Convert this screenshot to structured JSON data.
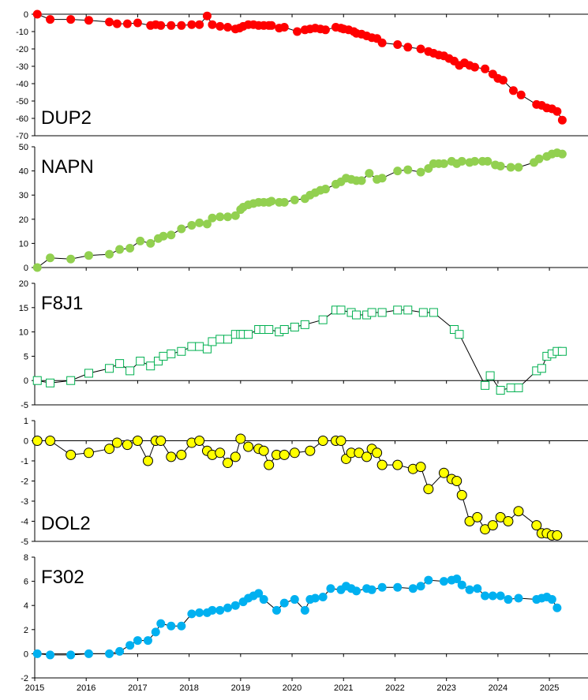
{
  "chart_data": [
    {
      "type": "line",
      "title": "DUP2",
      "ylim": [
        -70,
        0
      ],
      "yticks": [
        -70,
        -60,
        -50,
        -40,
        -30,
        -20,
        -10,
        0
      ],
      "title_pos": "bottom-left",
      "marker": "circle",
      "color": "#ff0000",
      "series": [
        {
          "name": "",
          "x": [
            2015.05,
            2015.3,
            2015.7,
            2016.05,
            2016.45,
            2016.6,
            2016.8,
            2017.0,
            2017.25,
            2017.35,
            2017.45,
            2017.65,
            2017.85,
            2018.05,
            2018.2,
            2018.35,
            2018.45,
            2018.6,
            2018.75,
            2018.9,
            2018.98,
            2019.05,
            2019.15,
            2019.25,
            2019.35,
            2019.45,
            2019.55,
            2019.6,
            2019.75,
            2019.85,
            2020.1,
            2020.25,
            2020.35,
            2020.45,
            2020.55,
            2020.65,
            2020.85,
            2020.95,
            2021.0,
            2021.1,
            2021.2,
            2021.25,
            2021.35,
            2021.45,
            2021.55,
            2021.65,
            2021.75,
            2022.05,
            2022.25,
            2022.5,
            2022.65,
            2022.75,
            2022.85,
            2022.95,
            2023.05,
            2023.15,
            2023.25,
            2023.35,
            2023.45,
            2023.55,
            2023.75,
            2023.9,
            2024.0,
            2024.1,
            2024.3,
            2024.45,
            2024.75,
            2024.85,
            2024.95,
            2025.05,
            2025.15,
            2025.25
          ],
          "y": [
            0,
            -3,
            -3,
            -3.5,
            -4.5,
            -5.5,
            -5.5,
            -5,
            -6.5,
            -6,
            -6.5,
            -6.5,
            -6.5,
            -6,
            -6,
            -1,
            -6,
            -7,
            -7.5,
            -8.5,
            -8,
            -7,
            -6,
            -6,
            -6.5,
            -6.5,
            -6.5,
            -6.5,
            -8,
            -7.5,
            -10,
            -9,
            -8.5,
            -8,
            -8.5,
            -9,
            -7.5,
            -8,
            -8.5,
            -9,
            -10,
            -11,
            -11.5,
            -12.5,
            -13.5,
            -14,
            -16.5,
            -17.5,
            -19,
            -20,
            -21.5,
            -22.5,
            -23.5,
            -24,
            -25.5,
            -27,
            -29.5,
            -28,
            -29.5,
            -30.5,
            -31.5,
            -34.5,
            -37,
            -38,
            -44,
            -46.5,
            -52,
            -52.5,
            -54,
            -54.5,
            -56,
            -61
          ]
        }
      ]
    },
    {
      "type": "line",
      "title": "NAPN",
      "ylim": [
        0,
        50
      ],
      "yticks": [
        0,
        10,
        20,
        30,
        40,
        50
      ],
      "title_pos": "top-left",
      "marker": "circle",
      "color": "#92d050",
      "series": [
        {
          "name": "",
          "x": [
            2015.05,
            2015.3,
            2015.7,
            2016.05,
            2016.45,
            2016.65,
            2016.85,
            2017.05,
            2017.25,
            2017.4,
            2017.5,
            2017.65,
            2017.85,
            2018.05,
            2018.2,
            2018.35,
            2018.45,
            2018.6,
            2018.75,
            2018.9,
            2019.0,
            2019.05,
            2019.15,
            2019.25,
            2019.35,
            2019.45,
            2019.55,
            2019.6,
            2019.75,
            2019.85,
            2020.05,
            2020.25,
            2020.35,
            2020.45,
            2020.55,
            2020.65,
            2020.85,
            2020.95,
            2021.05,
            2021.15,
            2021.25,
            2021.35,
            2021.5,
            2021.65,
            2021.75,
            2022.05,
            2022.25,
            2022.5,
            2022.65,
            2022.75,
            2022.85,
            2022.95,
            2023.1,
            2023.2,
            2023.3,
            2023.45,
            2023.55,
            2023.7,
            2023.8,
            2023.95,
            2024.05,
            2024.25,
            2024.4,
            2024.7,
            2024.8,
            2024.95,
            2025.05,
            2025.15,
            2025.25
          ],
          "y": [
            0,
            4,
            3.5,
            5,
            5.5,
            7.5,
            8,
            11,
            10,
            12,
            13,
            13.5,
            16,
            17.5,
            18.5,
            18,
            20.5,
            21,
            21,
            21.5,
            24,
            25,
            26,
            26.5,
            27,
            27,
            27,
            27.5,
            27,
            27,
            28,
            28.5,
            30,
            31,
            32,
            32.5,
            34.5,
            35.5,
            37,
            36.5,
            36,
            36,
            39,
            36.5,
            37,
            40,
            40.5,
            39.5,
            41,
            43,
            43,
            43,
            44,
            43,
            44,
            43.5,
            44,
            44,
            44,
            42.5,
            42,
            41.5,
            41.5,
            43.5,
            45,
            46,
            47,
            47.5,
            47
          ]
        }
      ]
    },
    {
      "type": "line",
      "title": "F8J1",
      "ylim": [
        -5,
        20
      ],
      "yticks": [
        -5,
        0,
        5,
        10,
        15,
        20
      ],
      "title_pos": "top-left",
      "marker": "square",
      "color": "#00b050",
      "series": [
        {
          "name": "",
          "x": [
            2015.05,
            2015.3,
            2015.7,
            2016.05,
            2016.45,
            2016.65,
            2016.85,
            2017.05,
            2017.25,
            2017.4,
            2017.5,
            2017.65,
            2017.85,
            2018.05,
            2018.2,
            2018.35,
            2018.45,
            2018.6,
            2018.75,
            2018.9,
            2019.0,
            2019.05,
            2019.15,
            2019.35,
            2019.45,
            2019.55,
            2019.75,
            2019.85,
            2020.05,
            2020.25,
            2020.6,
            2020.85,
            2020.95,
            2021.15,
            2021.25,
            2021.45,
            2021.55,
            2021.75,
            2022.05,
            2022.25,
            2022.55,
            2022.75,
            2023.15,
            2023.25,
            2023.75,
            2023.85,
            2024.05,
            2024.25,
            2024.4,
            2024.75,
            2024.85,
            2024.95,
            2025.05,
            2025.15,
            2025.25
          ],
          "y": [
            0,
            -0.5,
            0,
            1.5,
            2.5,
            3.5,
            2,
            4,
            3,
            4,
            5,
            5.5,
            6,
            7,
            7,
            6.5,
            8,
            8.5,
            8.5,
            9.5,
            9.5,
            9.5,
            9.5,
            10.5,
            10.5,
            10.5,
            10,
            10.5,
            11,
            11.5,
            12.5,
            14.5,
            14.5,
            14,
            13.5,
            13.5,
            14,
            14,
            14.5,
            14.5,
            14,
            14,
            10.5,
            9.5,
            -1,
            1,
            -2,
            -1.5,
            -1.5,
            2,
            2.5,
            5,
            5.5,
            6,
            6
          ]
        }
      ]
    },
    {
      "type": "line",
      "title": "DOL2",
      "ylim": [
        -5,
        1
      ],
      "yticks": [
        -5,
        -4,
        -3,
        -2,
        -1,
        0,
        1
      ],
      "title_pos": "bottom-left",
      "marker": "circle",
      "color": "#ffff00",
      "series": [
        {
          "name": "",
          "x": [
            2015.05,
            2015.3,
            2015.7,
            2016.05,
            2016.45,
            2016.6,
            2016.8,
            2017.0,
            2017.2,
            2017.35,
            2017.45,
            2017.65,
            2017.85,
            2018.05,
            2018.2,
            2018.35,
            2018.45,
            2018.6,
            2018.75,
            2018.9,
            2019.0,
            2019.15,
            2019.35,
            2019.45,
            2019.55,
            2019.7,
            2019.85,
            2020.05,
            2020.35,
            2020.6,
            2020.85,
            2020.95,
            2021.05,
            2021.15,
            2021.3,
            2021.45,
            2021.55,
            2021.65,
            2021.75,
            2022.05,
            2022.35,
            2022.5,
            2022.65,
            2022.95,
            2023.1,
            2023.2,
            2023.3,
            2023.45,
            2023.6,
            2023.75,
            2023.9,
            2024.05,
            2024.2,
            2024.4,
            2024.75,
            2024.85,
            2024.95,
            2025.05,
            2025.15
          ],
          "y": [
            0,
            0,
            -0.7,
            -0.6,
            -0.4,
            -0.1,
            -0.2,
            0,
            -1,
            0,
            0,
            -0.8,
            -0.7,
            -0.1,
            0,
            -0.5,
            -0.7,
            -0.6,
            -1.1,
            -0.8,
            0.1,
            -0.3,
            -0.4,
            -0.5,
            -1.2,
            -0.7,
            -0.7,
            -0.6,
            -0.5,
            0,
            0,
            0,
            -0.9,
            -0.6,
            -0.6,
            -0.8,
            -0.4,
            -0.6,
            -1.2,
            -1.2,
            -1.4,
            -1.3,
            -2.4,
            -1.6,
            -1.9,
            -2,
            -2.7,
            -4,
            -3.8,
            -4.4,
            -4.2,
            -3.8,
            -4,
            -3.5,
            -4.2,
            -4.6,
            -4.6,
            -4.7,
            -4.7
          ]
        }
      ]
    },
    {
      "type": "line",
      "title": "F302",
      "ylim": [
        -2,
        8
      ],
      "yticks": [
        -2,
        0,
        2,
        4,
        6,
        8
      ],
      "title_pos": "top-left",
      "marker": "circle",
      "color": "#00b0f0",
      "xticks": [
        2015,
        2016,
        2017,
        2018,
        2019,
        2020,
        2021,
        2022,
        2023,
        2024,
        2025
      ],
      "series": [
        {
          "name": "",
          "x": [
            2015.05,
            2015.3,
            2015.7,
            2016.05,
            2016.45,
            2016.65,
            2016.85,
            2017.0,
            2017.2,
            2017.35,
            2017.45,
            2017.65,
            2017.85,
            2018.05,
            2018.2,
            2018.35,
            2018.45,
            2018.6,
            2018.75,
            2018.9,
            2019.05,
            2019.15,
            2019.25,
            2019.35,
            2019.45,
            2019.7,
            2019.85,
            2020.05,
            2020.25,
            2020.35,
            2020.45,
            2020.6,
            2020.75,
            2020.95,
            2021.05,
            2021.15,
            2021.25,
            2021.45,
            2021.55,
            2021.75,
            2022.05,
            2022.35,
            2022.5,
            2022.65,
            2022.95,
            2023.1,
            2023.2,
            2023.3,
            2023.45,
            2023.6,
            2023.75,
            2023.9,
            2024.05,
            2024.2,
            2024.4,
            2024.75,
            2024.85,
            2024.95,
            2025.05,
            2025.15
          ],
          "y": [
            0,
            -0.1,
            -0.1,
            0,
            0,
            0.2,
            0.7,
            1.1,
            1.1,
            1.8,
            2.5,
            2.3,
            2.3,
            3.3,
            3.4,
            3.4,
            3.6,
            3.6,
            3.8,
            4.0,
            4.3,
            4.6,
            4.8,
            5.0,
            4.5,
            3.6,
            4.2,
            4.5,
            3.6,
            4.5,
            4.6,
            4.7,
            5.4,
            5.3,
            5.6,
            5.4,
            5.2,
            5.4,
            5.3,
            5.5,
            5.5,
            5.4,
            5.6,
            6.1,
            6.0,
            6.1,
            6.2,
            5.7,
            5.3,
            5.4,
            4.8,
            4.8,
            4.8,
            4.5,
            4.6,
            4.5,
            4.6,
            4.7,
            4.5,
            3.8
          ]
        }
      ]
    }
  ]
}
